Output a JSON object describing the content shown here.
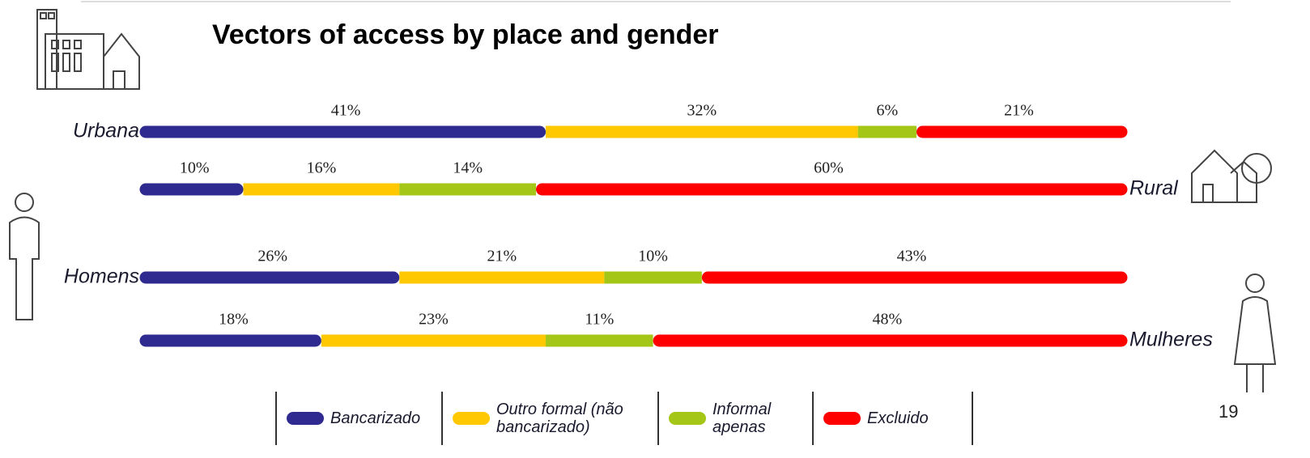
{
  "chart_data": {
    "type": "stacked-bar-horizontal",
    "title": "Vectors of access by place and gender",
    "categories": [
      "Urbana",
      "Rural",
      "Homens",
      "Mulheres"
    ],
    "xlim": [
      0,
      100
    ],
    "series": [
      {
        "name": "Bancarizado",
        "color": "#2e2a8f",
        "values": [
          41,
          10,
          26,
          18
        ],
        "value_labels": [
          "41%",
          "10%",
          "26%",
          "18%"
        ]
      },
      {
        "name": "Outro formal (não bancarizado)",
        "color": "#ffc800",
        "values": [
          32,
          16,
          21,
          23
        ],
        "value_labels": [
          "32%",
          "16%",
          "21%",
          "23%"
        ]
      },
      {
        "name": "Informal apenas",
        "color": "#a4c616",
        "values": [
          6,
          14,
          10,
          11
        ],
        "value_labels": [
          "6%",
          "14%",
          "10%",
          "11%"
        ]
      },
      {
        "name": "Excluido",
        "color": "#ff0000",
        "values": [
          21,
          60,
          43,
          48
        ],
        "value_labels": [
          "21%",
          "60%",
          "43%",
          "48%"
        ]
      }
    ],
    "page_number": "19"
  }
}
